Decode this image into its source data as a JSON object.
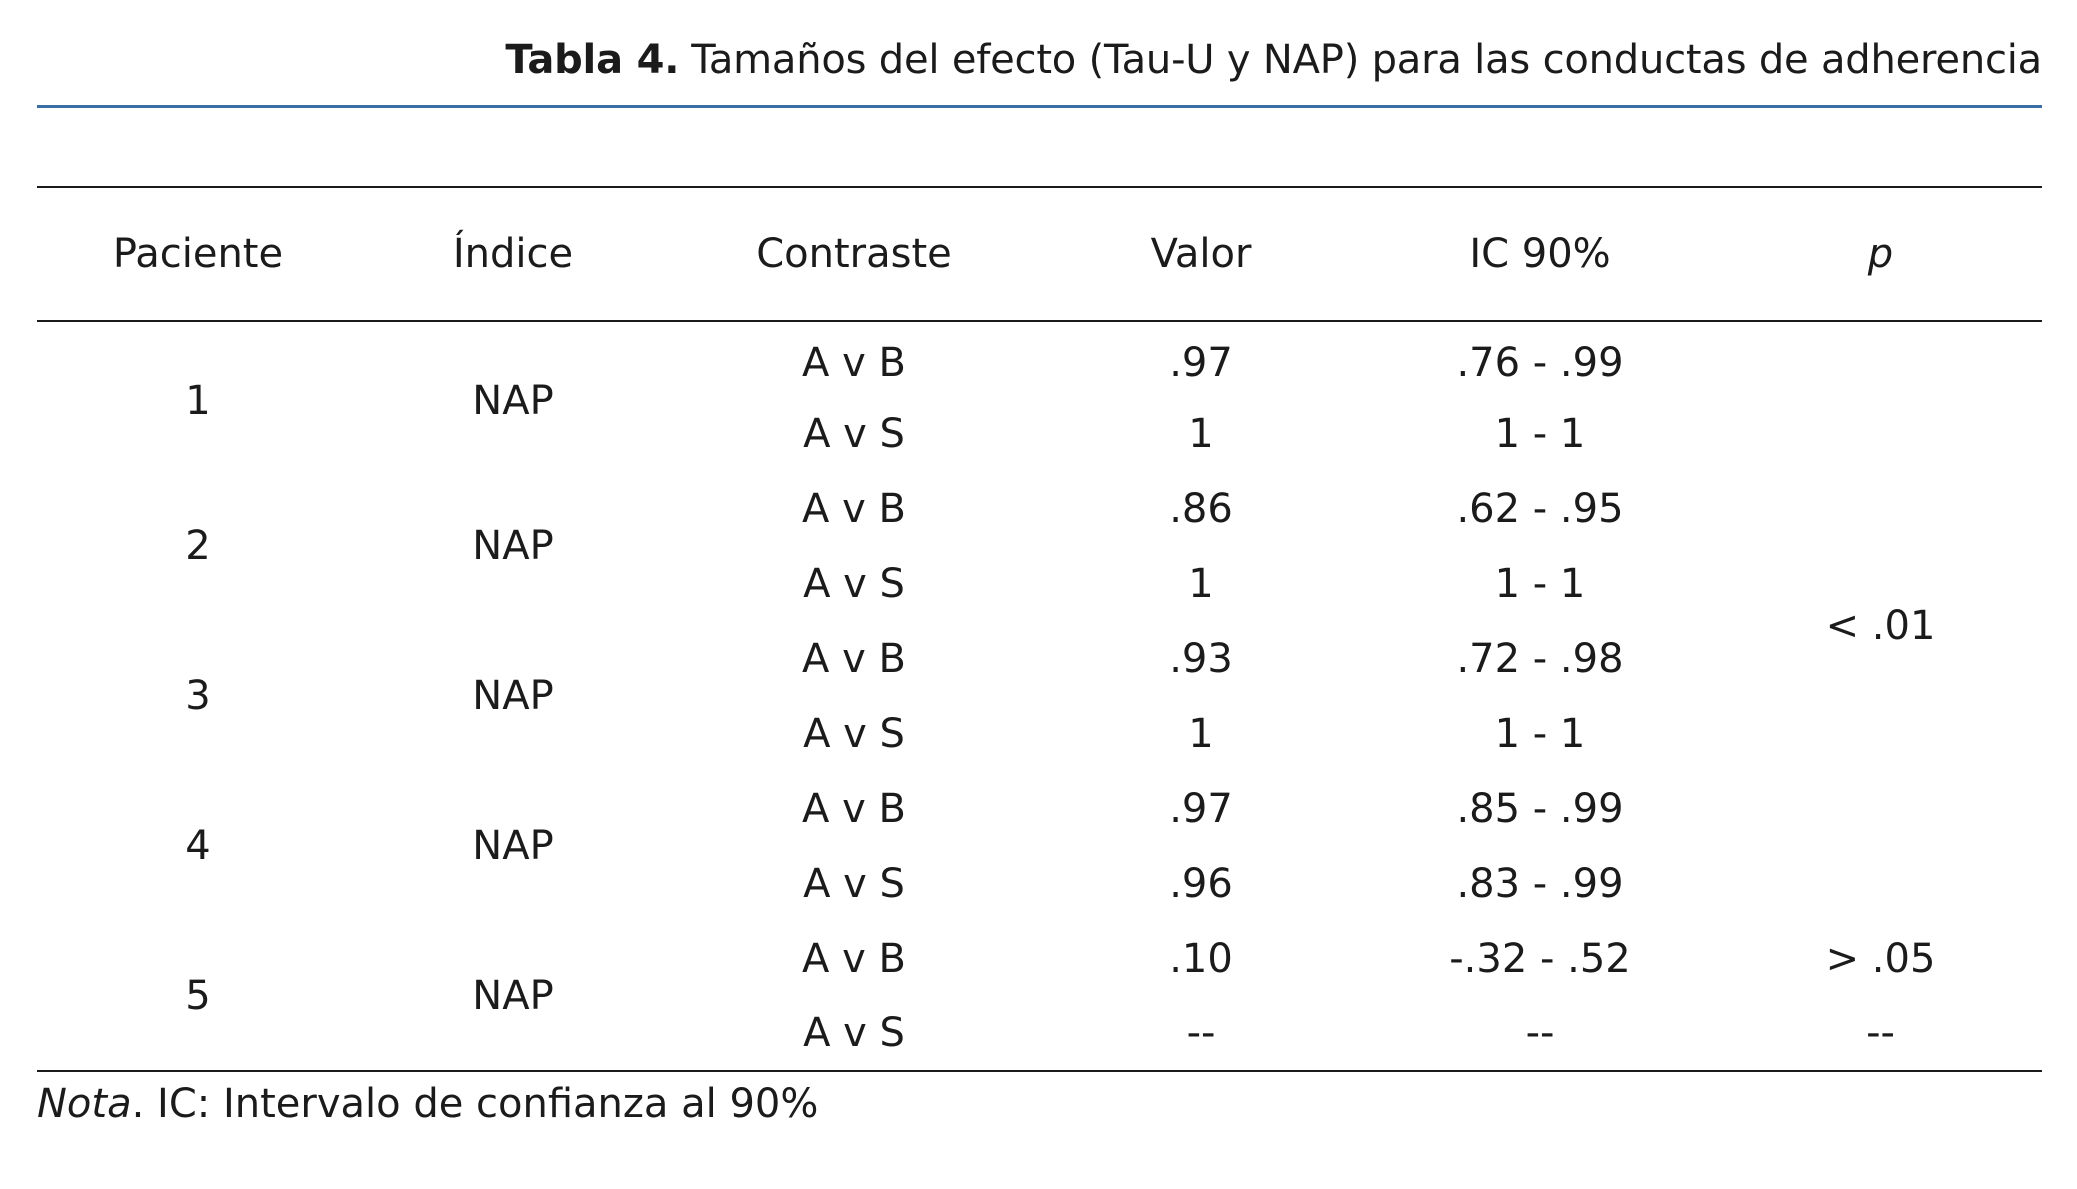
{
  "caption": {
    "label": "Tabla 4.",
    "text": "Tamaños del efecto (Tau-U y NAP) para las conductas de adherencia"
  },
  "table": {
    "headers": [
      "Paciente",
      "Índice",
      "Contraste",
      "Valor",
      "IC 90%",
      "p"
    ],
    "groups": [
      {
        "paciente": "1",
        "indice": "NAP",
        "rows": [
          {
            "contraste": "A v B",
            "valor": ".97",
            "ic": ".76 - .99"
          },
          {
            "contraste": "A v S",
            "valor": "1",
            "ic": "1 - 1"
          }
        ]
      },
      {
        "paciente": "2",
        "indice": "NAP",
        "rows": [
          {
            "contraste": "A v B",
            "valor": ".86",
            "ic": ".62 - .95"
          },
          {
            "contraste": "A v S",
            "valor": "1",
            "ic": "1 - 1"
          }
        ]
      },
      {
        "paciente": "3",
        "indice": "NAP",
        "rows": [
          {
            "contraste": "A v B",
            "valor": ".93",
            "ic": ".72 - .98"
          },
          {
            "contraste": "A v S",
            "valor": "1",
            "ic": "1 - 1"
          }
        ]
      },
      {
        "paciente": "4",
        "indice": "NAP",
        "rows": [
          {
            "contraste": "A v B",
            "valor": ".97",
            "ic": ".85 - .99"
          },
          {
            "contraste": "A v S",
            "valor": ".96",
            "ic": ".83 - .99"
          }
        ]
      },
      {
        "paciente": "5",
        "indice": "NAP",
        "rows": [
          {
            "contraste": "A v B",
            "valor": ".10",
            "ic": "-.32 - .52"
          },
          {
            "contraste": "A v S",
            "valor": "--",
            "ic": "--"
          }
        ]
      }
    ],
    "p_values": {
      "patients_1_4": "< .01",
      "patient_5_avb": "> .05",
      "patient_5_avs": "--"
    }
  },
  "note": {
    "label": "Nota",
    "text": ". IC: Intervalo de confianza al 90%"
  },
  "colors": {
    "accent_rule": "#3a6ea5",
    "text": "#1b1b1b"
  }
}
